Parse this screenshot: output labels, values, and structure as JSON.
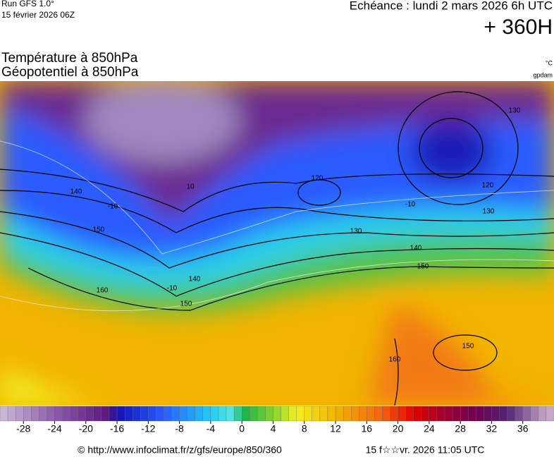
{
  "header": {
    "run": "Run GFS 1.0°",
    "run_date": "15 février 2026 06Z",
    "echeance": "Echéance : lundi 2 mars 2026 6h UTC",
    "lead": "+ 360H"
  },
  "titles": {
    "line1": "Température à 850hPa",
    "line2": "Géopotentiel à 850hPa",
    "unit_temp": "°C",
    "unit_geo": "gpdam"
  },
  "colorbar": {
    "min": -31,
    "max": 40,
    "ticks": [
      -28,
      -24,
      -20,
      -16,
      -12,
      -8,
      -4,
      0,
      4,
      8,
      12,
      16,
      20,
      24,
      28,
      32,
      36
    ],
    "stops": [
      {
        "t": -31,
        "color": "#cdbcd8"
      },
      {
        "t": -24,
        "color": "#8c5cab"
      },
      {
        "t": -17,
        "color": "#5c167c"
      },
      {
        "t": -16,
        "color": "#1212b4"
      },
      {
        "t": -10,
        "color": "#2a5cff"
      },
      {
        "t": -4,
        "color": "#22cbf2"
      },
      {
        "t": -1,
        "color": "#5ae6e0"
      },
      {
        "t": 0,
        "color": "#12b04c"
      },
      {
        "t": 4,
        "color": "#86d232"
      },
      {
        "t": 7,
        "color": "#f2f020"
      },
      {
        "t": 12,
        "color": "#f2b400"
      },
      {
        "t": 18,
        "color": "#f26212"
      },
      {
        "t": 22,
        "color": "#e00000"
      },
      {
        "t": 26,
        "color": "#a00030"
      },
      {
        "t": 30,
        "color": "#700052"
      },
      {
        "t": 34,
        "color": "#522474"
      },
      {
        "t": 39,
        "color": "#c8a8c8"
      }
    ]
  },
  "contour_labels": [
    "120",
    "130",
    "140",
    "150",
    "140",
    "150",
    "140",
    "150",
    "160",
    "-10",
    "10",
    "-10",
    "120",
    "130",
    "150",
    "160",
    "-10",
    "130"
  ],
  "footer": {
    "source": "© http://www.infoclimat.fr/z/gfs/europe/850/360",
    "generated": "15 f☆☆vr. 2026 11:05 UTC"
  }
}
